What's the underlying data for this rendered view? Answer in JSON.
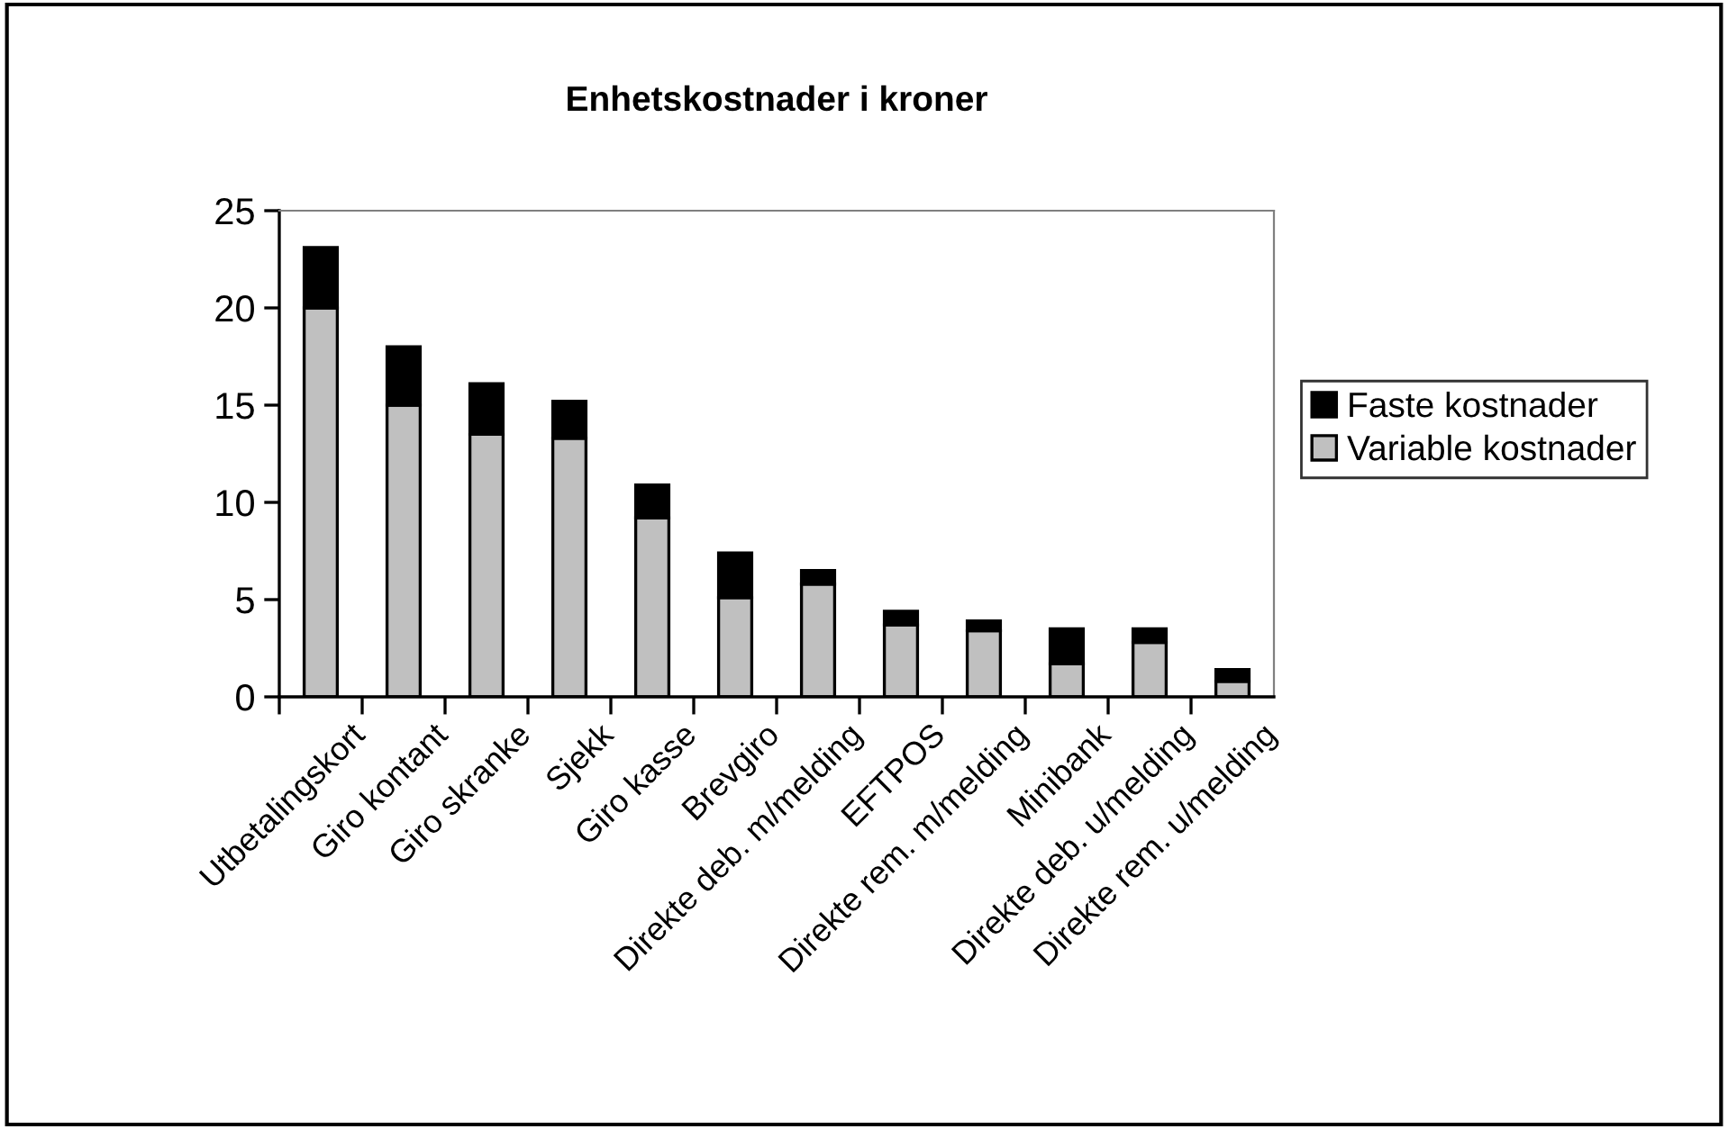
{
  "chart_data": {
    "type": "bar",
    "title": "Enhetskostnader i kroner",
    "stacked": true,
    "categories": [
      "Utbetalingskort",
      "Giro kontant",
      "Giro skranke",
      "Sjekk",
      "Giro kasse",
      "Brevgiro",
      "Direkte deb. m/melding",
      "EFTPOS",
      "Direkte rem. m/melding",
      "Minibank",
      "Direkte deb. u/melding",
      "Direkte rem. u/melding"
    ],
    "series": [
      {
        "name": "Variable kostnader",
        "color": "#c0c0c0",
        "values": [
          20,
          15,
          13.5,
          13.3,
          9.2,
          5.1,
          5.8,
          3.7,
          3.4,
          1.7,
          2.8,
          0.8
        ]
      },
      {
        "name": "Faste kostnader",
        "color": "#000000",
        "values": [
          3.1,
          3,
          2.6,
          1.9,
          1.7,
          2.3,
          0.7,
          0.7,
          0.5,
          1.8,
          0.7,
          0.6
        ]
      }
    ],
    "ylim": [
      0,
      25
    ],
    "yticks": [
      0,
      5,
      10,
      15,
      20,
      25
    ],
    "grid": false,
    "legend": "right"
  }
}
